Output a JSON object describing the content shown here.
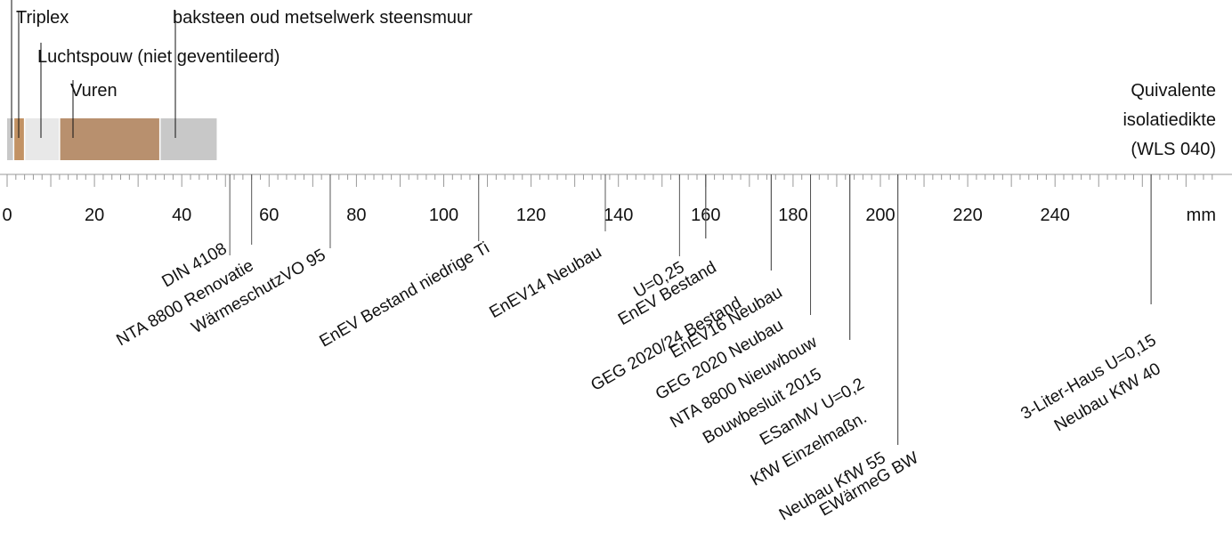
{
  "axis": {
    "unit": "mm",
    "min": 0,
    "max": 277,
    "major_ticks": [
      0,
      20,
      40,
      60,
      80,
      100,
      120,
      140,
      160,
      180,
      200,
      220,
      240
    ]
  },
  "title": [
    "Quivalente",
    "isolatiedikte",
    "(WLS 040)"
  ],
  "layers": [
    {
      "name": "",
      "start": 0,
      "end": 1.5,
      "color": "#c8c8c8"
    },
    {
      "name": "Triplex",
      "start": 1.5,
      "end": 4,
      "color": "#c29264"
    },
    {
      "name": "Luchtspouw (niet geventileerd)",
      "start": 4,
      "end": 12,
      "color": "#e8e8e8"
    },
    {
      "name": "Vuren",
      "start": 12,
      "end": 35,
      "color": "#b8906e"
    },
    {
      "name": "baksteen oud metselwerk steensmuur",
      "start": 35,
      "end": 48,
      "color": "#c8c8c8"
    }
  ],
  "standards": [
    {
      "label": "DIN 4108",
      "value": 51
    },
    {
      "label": "NTA 8800 Renovatie",
      "value": 56
    },
    {
      "label": "WärmeschutzVO 95",
      "value": 74
    },
    {
      "label": "EnEV Bestand niedrige Ti",
      "value": 108
    },
    {
      "label": "EnEV14 Neubau",
      "value": 137
    },
    {
      "label": "U=0,25",
      "value": 154
    },
    {
      "label": "EnEV Bestand",
      "value": 160
    },
    {
      "label": "GEG 2020/24 Bestand",
      "value": 160
    },
    {
      "label": "EnEV16 Neubau",
      "value": 175
    },
    {
      "label": "GEG 2020 Neubau",
      "value": 175
    },
    {
      "label": "NTA 8800 Nieuwbouw",
      "value": 184
    },
    {
      "label": "Bouwbesluit 2015",
      "value": 184
    },
    {
      "label": "ESanMV U=0,2",
      "value": 193
    },
    {
      "label": "KfW Einzelmaßn.",
      "value": 193
    },
    {
      "label": "Neubau KfW 55",
      "value": 204
    },
    {
      "label": "EWärmeG BW",
      "value": 204
    },
    {
      "label": "3-Liter-Haus U=0,15",
      "value": 262
    },
    {
      "label": "Neubau KfW 40",
      "value": 262
    }
  ]
}
